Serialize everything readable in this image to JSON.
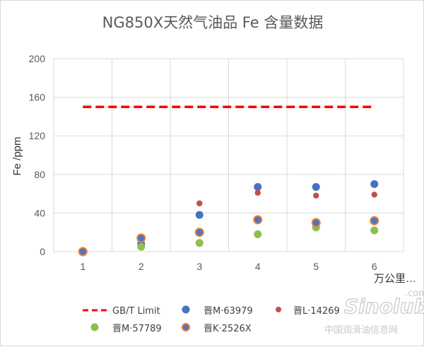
{
  "chart_data": {
    "type": "scatter",
    "title": "NG850X天然气油品   Fe 含量数据",
    "ylabel": "Fe /ppm",
    "xlabel": "万公里…",
    "ylim": [
      0,
      200
    ],
    "xlim": [
      0.5,
      6.5
    ],
    "x_ticks": [
      "1",
      "2",
      "3",
      "4",
      "5",
      "6"
    ],
    "y_ticks": [
      "0",
      "40",
      "80",
      "120",
      "160",
      "200"
    ],
    "grid": true,
    "legend_position": "bottom",
    "limit_line": {
      "name": "GB/T Limit",
      "value": 150,
      "x_range": [
        1,
        6
      ],
      "color": "#ff0000"
    },
    "series": [
      {
        "name": "晋M·63979",
        "color": "#4472c4",
        "x": [
          1,
          2,
          3,
          4,
          5,
          6
        ],
        "values": [
          0,
          8,
          38,
          67,
          67,
          70
        ]
      },
      {
        "name": "晋L·14269",
        "color": "#c0504d",
        "x": [
          1,
          2,
          3,
          4,
          5,
          6
        ],
        "values": [
          0,
          13,
          50,
          61,
          58,
          59
        ]
      },
      {
        "name": "晋M·57789",
        "color": "#8fbf4d",
        "x": [
          1,
          2,
          3,
          4,
          5,
          6
        ],
        "values": [
          0,
          5,
          9,
          18,
          25,
          22
        ]
      },
      {
        "name": "晋K·2526X",
        "color": "#4a76c4",
        "edge": "#ed7d31",
        "x": [
          1,
          2,
          3,
          4,
          5,
          6
        ],
        "values": [
          0,
          14,
          20,
          33,
          30,
          32
        ]
      }
    ]
  },
  "watermark": {
    "brand": "Sinolub",
    "domain": ".com",
    "subtitle": "中国润滑油信息网"
  }
}
